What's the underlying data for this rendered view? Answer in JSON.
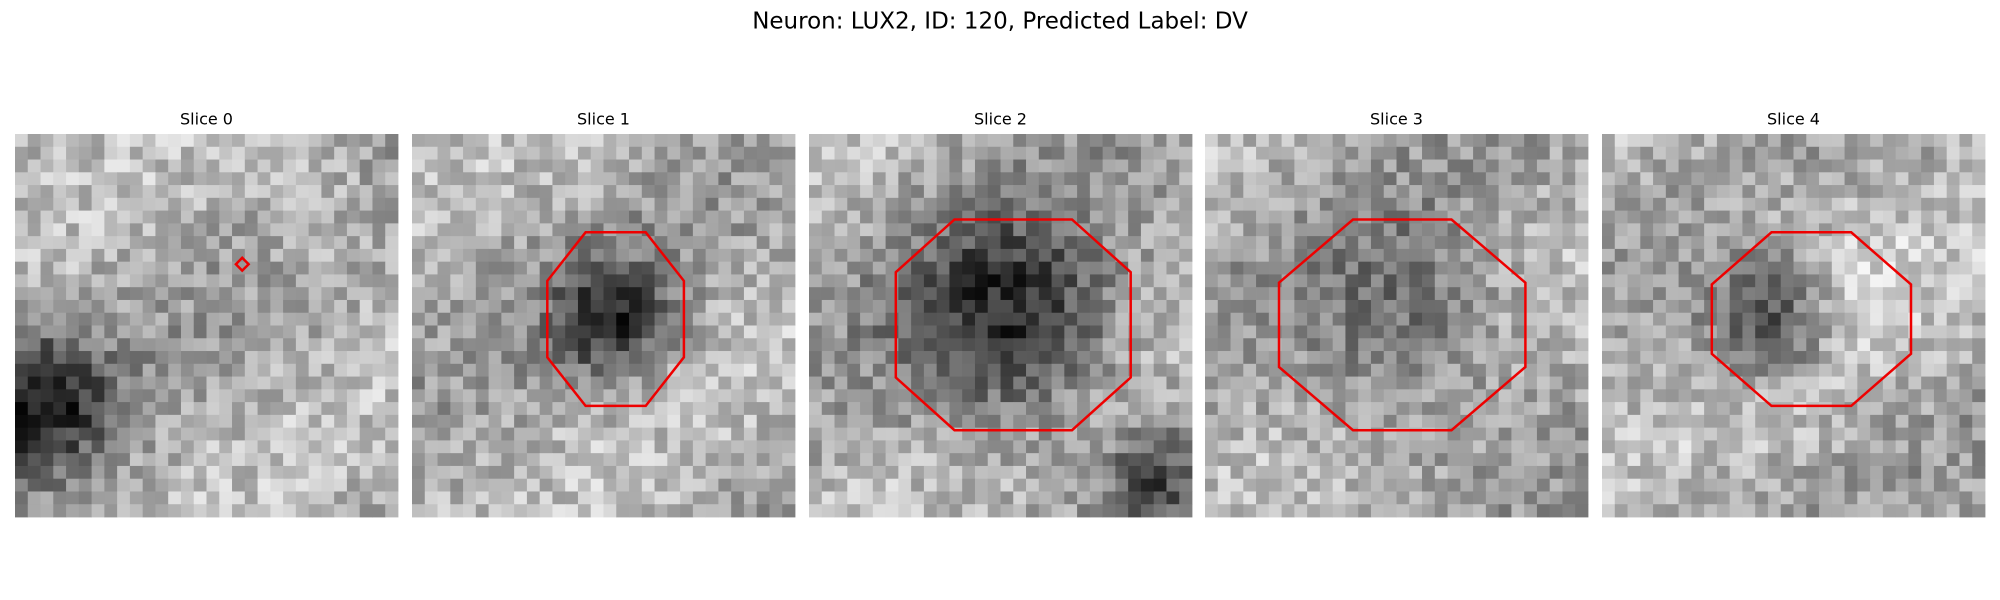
{
  "title": "Neuron: LUX2, ID: 120, Predicted Label: DV",
  "panels": [
    {
      "title": "Slice 0"
    },
    {
      "title": "Slice 1"
    },
    {
      "title": "Slice 2"
    },
    {
      "title": "Slice 3"
    },
    {
      "title": "Slice 4"
    }
  ]
}
